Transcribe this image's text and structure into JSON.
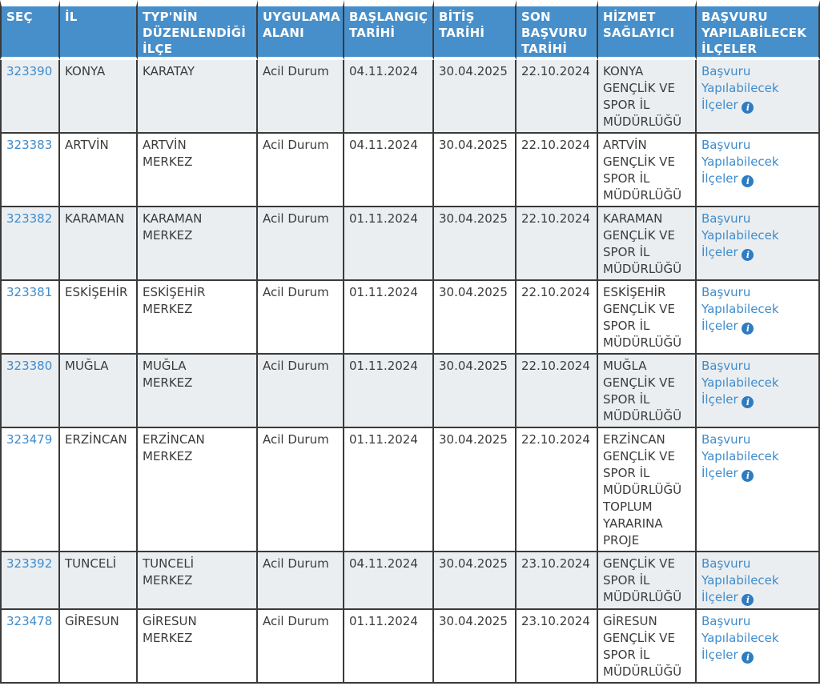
{
  "colors": {
    "header_bg": "#478fca",
    "header_text": "#ffffff",
    "link": "#3e8ccd",
    "info_icon_bg": "#2e7cc2",
    "border": "#3a3a3a",
    "text": "#3b3b3b"
  },
  "table": {
    "columns": [
      {
        "key": "sec",
        "label": "SEÇ"
      },
      {
        "key": "il",
        "label": "İL"
      },
      {
        "key": "ilce",
        "label": "TYP'NİN DÜZENLENDİĞİ İLÇE"
      },
      {
        "key": "alan",
        "label": "UYGULAMA ALANI"
      },
      {
        "key": "baslangic",
        "label": "BAŞLANGIÇ TARİHİ"
      },
      {
        "key": "bitis",
        "label": "BİTİŞ TARİHİ"
      },
      {
        "key": "son",
        "label": "SON BAŞVURU TARİHİ"
      },
      {
        "key": "saglayici",
        "label": "HİZMET SAĞLAYICI"
      },
      {
        "key": "basvuru",
        "label": "BAŞVURU YAPILABİLECEK İLÇELER"
      }
    ],
    "apply_link": {
      "label": "Başvuru Yapılabilecek İlçeler",
      "icon": "info-icon",
      "icon_glyph": "i"
    },
    "rows": [
      {
        "id": "323390",
        "il": "KONYA",
        "ilce": "KARATAY",
        "alan": "Acil Durum",
        "baslangic": "04.11.2024",
        "bitis": "30.04.2025",
        "son": "22.10.2024",
        "saglayici": "KONYA GENÇLİK VE SPOR İL MÜDÜRLÜĞÜ"
      },
      {
        "id": "323383",
        "il": "ARTVİN",
        "ilce": "ARTVİN MERKEZ",
        "alan": "Acil Durum",
        "baslangic": "04.11.2024",
        "bitis": "30.04.2025",
        "son": "22.10.2024",
        "saglayici": "ARTVİN GENÇLİK VE SPOR İL MÜDÜRLÜĞÜ"
      },
      {
        "id": "323382",
        "il": "KARAMAN",
        "ilce": "KARAMAN MERKEZ",
        "alan": "Acil Durum",
        "baslangic": "01.11.2024",
        "bitis": "30.04.2025",
        "son": "22.10.2024",
        "saglayici": "KARAMAN GENÇLİK VE SPOR İL MÜDÜRLÜĞÜ"
      },
      {
        "id": "323381",
        "il": "ESKİŞEHİR",
        "ilce": "ESKİŞEHİR MERKEZ",
        "alan": "Acil Durum",
        "baslangic": "01.11.2024",
        "bitis": "30.04.2025",
        "son": "22.10.2024",
        "saglayici": "ESKİŞEHİR GENÇLİK VE SPOR İL MÜDÜRLÜĞÜ"
      },
      {
        "id": "323380",
        "il": "MUĞLA",
        "ilce": "MUĞLA MERKEZ",
        "alan": "Acil Durum",
        "baslangic": "01.11.2024",
        "bitis": "30.04.2025",
        "son": "22.10.2024",
        "saglayici": "MUĞLA GENÇLİK VE SPOR İL MÜDÜRLÜĞÜ"
      },
      {
        "id": "323479",
        "il": "ERZİNCAN",
        "ilce": "ERZİNCAN MERKEZ",
        "alan": "Acil Durum",
        "baslangic": "01.11.2024",
        "bitis": "30.04.2025",
        "son": "22.10.2024",
        "saglayici": "ERZİNCAN GENÇLİK VE SPOR İL MÜDÜRLÜĞÜ TOPLUM YARARINA PROJE"
      },
      {
        "id": "323392",
        "il": "TUNCELİ",
        "ilce": "TUNCELİ MERKEZ",
        "alan": "Acil Durum",
        "baslangic": "04.11.2024",
        "bitis": "30.04.2025",
        "son": "23.10.2024",
        "saglayici": "GENÇLİK VE SPOR İL MÜDÜRLÜĞÜ"
      },
      {
        "id": "323478",
        "il": "GİRESUN",
        "ilce": "GİRESUN MERKEZ",
        "alan": "Acil Durum",
        "baslangic": "01.11.2024",
        "bitis": "30.04.2025",
        "son": "23.10.2024",
        "saglayici": "GİRESUN GENÇLİK VE SPOR İL MÜDÜRLÜĞÜ"
      }
    ]
  }
}
